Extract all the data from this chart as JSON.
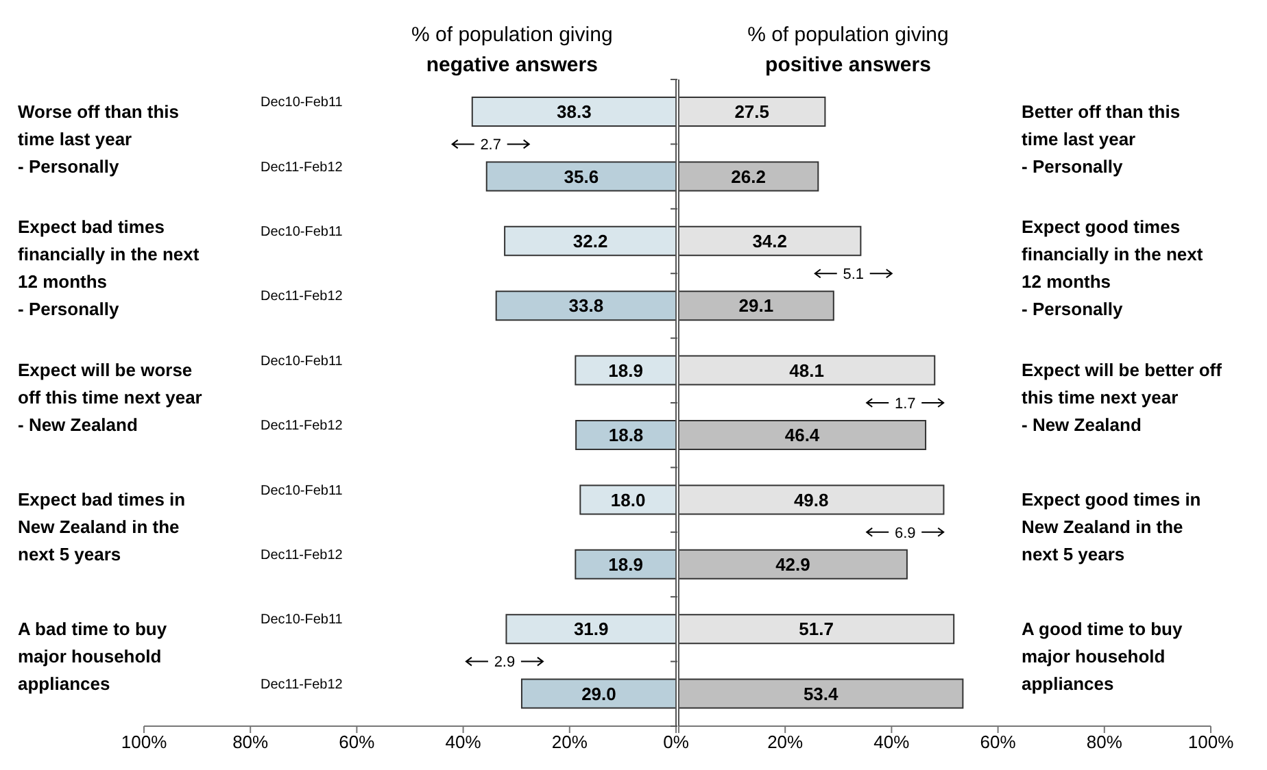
{
  "chart_data": [
    {
      "type": "bar",
      "orientation": "horizontal",
      "categories": [
        "Dec10-Feb11",
        "Dec11-Feb12",
        "Dec10-Feb11",
        "Dec11-Feb12",
        "Dec10-Feb11",
        "Dec11-Feb12",
        "Dec10-Feb11",
        "Dec11-Feb12",
        "Dec10-Feb11",
        "Dec11-Feb12"
      ],
      "colors": [
        "#d9e6ec",
        "#b9cfda",
        "#d9e6ec",
        "#b9cfda",
        "#d9e6ec",
        "#b9cfda",
        "#d9e6ec",
        "#b9cfda",
        "#d9e6ec",
        "#b9cfda"
      ],
      "values": [
        38.3,
        35.6,
        32.2,
        33.8,
        18.9,
        18.8,
        18.0,
        18.9,
        31.9,
        29.0
      ],
      "value_labels": [
        "38.3",
        "35.6",
        "32.2",
        "33.8",
        "18.9",
        "18.8",
        "18.0",
        "18.9",
        "31.9",
        "29.0"
      ],
      "xlim": [
        100,
        0
      ],
      "xticks": [
        {
          "value": 100,
          "label": "100%"
        },
        {
          "value": 80,
          "label": "80%"
        },
        {
          "value": 60,
          "label": "60%"
        },
        {
          "value": 40,
          "label": "40%"
        },
        {
          "value": 20,
          "label": "20%"
        },
        {
          "value": 0,
          "label": "0%"
        }
      ],
      "annotations": [
        "% of population giving",
        "negative answers",
        "Worse off than this\ntime last year\n- Personally",
        "Expect bad times\nfinancially in the next\n12 months\n- Personally",
        "Expect will be worse\noff this time next year\n- New Zealand",
        "Expect bad times in\nNew Zealand in the\nnext 5 years",
        "A bad time to buy\nmajor household\nappliances",
        "2.7",
        "2.9"
      ]
    },
    {
      "type": "bar",
      "orientation": "horizontal",
      "tick_labels": "x",
      "categories": [
        null,
        null,
        null,
        null,
        null,
        null,
        null,
        null,
        null,
        null
      ],
      "colors": [
        "#e3e3e3",
        "#bfbfbf",
        "#e3e3e3",
        "#bfbfbf",
        "#e3e3e3",
        "#bfbfbf",
        "#e3e3e3",
        "#bfbfbf",
        "#e3e3e3",
        "#bfbfbf"
      ],
      "values": [
        27.5,
        26.2,
        34.2,
        29.1,
        48.1,
        46.4,
        49.8,
        42.9,
        51.7,
        53.4
      ],
      "value_labels": [
        "27.5",
        "26.2",
        "34.2",
        "29.1",
        "48.1",
        "46.4",
        "49.8",
        "42.9",
        "51.7",
        "53.4"
      ],
      "xlim": [
        0,
        100
      ],
      "xticks": [
        {
          "value": 0,
          "label": null
        },
        {
          "value": 20,
          "label": "20%"
        },
        {
          "value": 40,
          "label": "40%"
        },
        {
          "value": 60,
          "label": "60%"
        },
        {
          "value": 80,
          "label": "80%"
        },
        {
          "value": 100,
          "label": "100%"
        }
      ],
      "annotations": [
        "% of population giving",
        "positive answers",
        "Better off than this\ntime last year\n- Personally",
        "Expect good times\nfinancially in the next\n12 months\n- Personally",
        "Expect will be better off\nthis time next year\n- New Zealand",
        "Expect good times in\nNew Zealand in the\nnext 5 years",
        "A good time to buy\nmajor household\nappliances",
        "5.1",
        "1.7",
        "6.9"
      ]
    }
  ]
}
